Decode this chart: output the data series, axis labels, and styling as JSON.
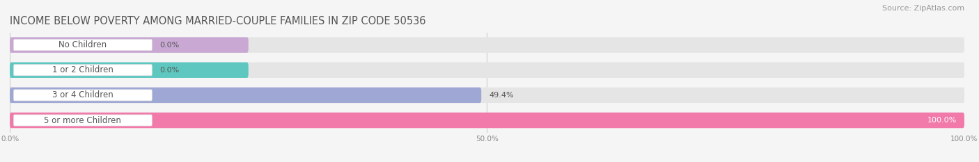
{
  "title": "INCOME BELOW POVERTY AMONG MARRIED-COUPLE FAMILIES IN ZIP CODE 50536",
  "source": "Source: ZipAtlas.com",
  "categories": [
    "No Children",
    "1 or 2 Children",
    "3 or 4 Children",
    "5 or more Children"
  ],
  "values": [
    0.0,
    0.0,
    49.4,
    100.0
  ],
  "bar_colors": [
    "#c9a8d4",
    "#5ec8c0",
    "#9fa8d4",
    "#f27aaa"
  ],
  "bg_color": "#f5f5f5",
  "bar_bg_color": "#e5e5e5",
  "bar_height": 0.62,
  "xlim": [
    0,
    100
  ],
  "xticks": [
    0,
    50,
    100
  ],
  "xticklabels": [
    "0.0%",
    "50.0%",
    "100.0%"
  ],
  "title_fontsize": 10.5,
  "source_fontsize": 8,
  "label_fontsize": 8.5,
  "value_fontsize": 8
}
